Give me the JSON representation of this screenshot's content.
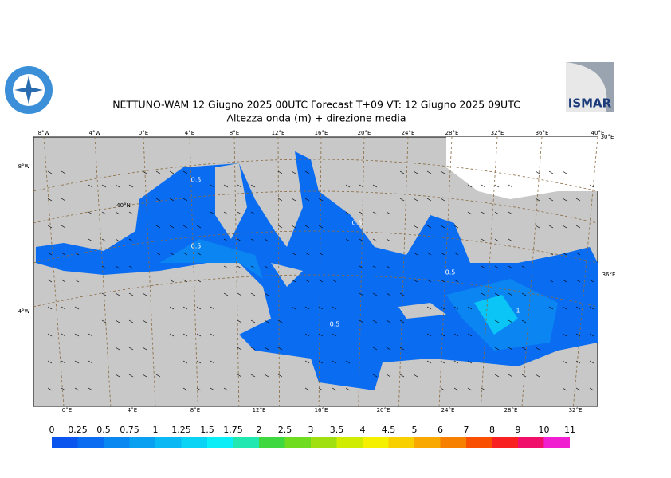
{
  "header": {
    "title": "NETTUNO-WAM  12   Giugno  2025 00UTC Forecast T+09 VT: 12   Giugno  2025 09UTC",
    "subtitle": "Altezza onda (m) + direzione media",
    "logo_right": "ISMAR"
  },
  "map": {
    "top_labels": [
      "8°W",
      "4°W",
      "0°E",
      "4°E",
      "8°E",
      "12°E",
      "16°E",
      "20°E",
      "24°E",
      "28°E",
      "32°E",
      "36°E",
      "40°E"
    ],
    "bottom_labels": [
      "0°E",
      "4°E",
      "8°E",
      "12°E",
      "16°E",
      "20°E",
      "24°E",
      "28°E",
      "32°E"
    ],
    "left_labels": [
      "8°W",
      "40°N",
      "4°W"
    ],
    "right_labels": [
      "30°E",
      "36°E"
    ],
    "contour_labels": [
      "0.5",
      "0.5",
      "0.5",
      "0.5",
      "0.5",
      "1"
    ]
  },
  "legend": {
    "levels": [
      0,
      0.25,
      0.5,
      0.75,
      1,
      1.25,
      1.5,
      1.75,
      2,
      2.5,
      3,
      3.5,
      4,
      4.5,
      5,
      6,
      7,
      8,
      9,
      10,
      11
    ],
    "colors": [
      "#0a55ee",
      "#0a6cf0",
      "#0a88f2",
      "#0aa0f2",
      "#0ab8f4",
      "#0ad4f6",
      "#0aeef8",
      "#20e8b0",
      "#40d840",
      "#70dc20",
      "#a0e010",
      "#d0ec00",
      "#f4f000",
      "#f8d000",
      "#f8a800",
      "#f88000",
      "#f85000",
      "#f82020",
      "#f0106c",
      "#f020d0"
    ]
  }
}
